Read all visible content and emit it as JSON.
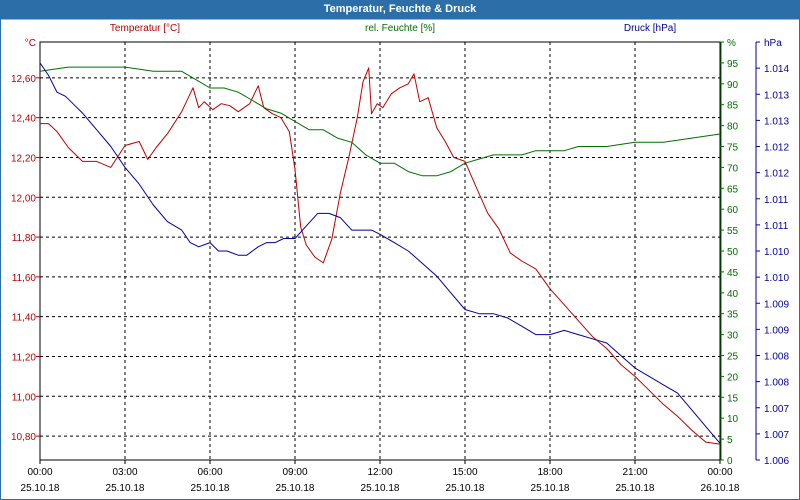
{
  "chart_data": {
    "type": "line",
    "title": "Temperatur, Feuchte & Druck",
    "x_tick_times": [
      "00:00",
      "03:00",
      "06:00",
      "09:00",
      "12:00",
      "15:00",
      "18:00",
      "21:00",
      "00:00"
    ],
    "x_tick_dates": [
      "25.10.18",
      "25.10.18",
      "25.10.18",
      "25.10.18",
      "25.10.18",
      "25.10.18",
      "25.10.18",
      "25.10.18",
      "26.10.18"
    ],
    "x_range_hours": [
      0,
      24
    ],
    "axes": {
      "left": {
        "unit": "°C",
        "range": [
          10.68,
          12.78
        ],
        "ticks": [
          "10,80",
          "11,00",
          "11,20",
          "11,40",
          "11,60",
          "11,80",
          "12,00",
          "12,20",
          "12,40",
          "12,60"
        ],
        "tick_values": [
          10.8,
          11.0,
          11.2,
          11.4,
          11.6,
          11.8,
          12.0,
          12.2,
          12.4,
          12.6
        ]
      },
      "mid": {
        "unit": "%",
        "range": [
          0,
          100
        ],
        "ticks": [
          "0",
          "5",
          "10",
          "15",
          "20",
          "25",
          "30",
          "35",
          "40",
          "45",
          "50",
          "55",
          "60",
          "65",
          "70",
          "75",
          "80",
          "85",
          "90",
          "95",
          "%"
        ],
        "tick_values": [
          0,
          5,
          10,
          15,
          20,
          25,
          30,
          35,
          40,
          45,
          50,
          55,
          60,
          65,
          70,
          75,
          80,
          85,
          90,
          95,
          100
        ]
      },
      "right": {
        "unit": "hPa",
        "range": [
          0,
          100
        ],
        "ticks": [
          "1.006",
          "1.007",
          "1.007",
          "1.008",
          "1.008",
          "1.009",
          "1.009",
          "1.010",
          "1.010",
          "1.011",
          "1.011",
          "1.012",
          "1.012",
          "1.013",
          "1.013",
          "1.014",
          "hPa"
        ],
        "tick_values": [
          0,
          6.25,
          12.5,
          18.75,
          25,
          31.25,
          37.5,
          43.75,
          50,
          56.25,
          62.5,
          68.75,
          75,
          81.25,
          87.5,
          93.75,
          100
        ]
      }
    },
    "series": [
      {
        "name": "Temperatur [°C]",
        "color": "#c00000",
        "axis": "left",
        "x": [
          0,
          0.3,
          0.6,
          1,
          1.5,
          2,
          2.5,
          3,
          3.5,
          3.8,
          4.1,
          4.5,
          5,
          5.4,
          5.6,
          5.8,
          6.1,
          6.4,
          6.7,
          7,
          7.4,
          7.7,
          7.9,
          8.2,
          8.5,
          8.8,
          9.0,
          9.2,
          9.4,
          9.7,
          10,
          10.3,
          10.6,
          10.9,
          11.2,
          11.4,
          11.6,
          11.7,
          11.9,
          12.1,
          12.4,
          12.7,
          13,
          13.2,
          13.4,
          13.7,
          14,
          14.3,
          14.6,
          15,
          15.4,
          15.8,
          16.2,
          16.6,
          17,
          17.5,
          18,
          18.5,
          19,
          19.5,
          20,
          20.5,
          21,
          21.5,
          22,
          22.5,
          23,
          23.5,
          24
        ],
        "values": [
          12.37,
          12.37,
          12.33,
          12.25,
          12.18,
          12.18,
          12.15,
          12.26,
          12.28,
          12.19,
          12.25,
          12.32,
          12.43,
          12.55,
          12.45,
          12.48,
          12.44,
          12.47,
          12.46,
          12.43,
          12.47,
          12.56,
          12.45,
          12.42,
          12.4,
          12.33,
          12.14,
          11.85,
          11.76,
          11.7,
          11.67,
          11.79,
          12.02,
          12.2,
          12.4,
          12.58,
          12.65,
          12.42,
          12.47,
          12.45,
          12.52,
          12.55,
          12.57,
          12.62,
          12.48,
          12.5,
          12.35,
          12.28,
          12.2,
          12.18,
          12.05,
          11.92,
          11.84,
          11.72,
          11.68,
          11.64,
          11.54,
          11.46,
          11.38,
          11.3,
          11.24,
          11.16,
          11.1,
          11.03,
          10.96,
          10.9,
          10.83,
          10.77,
          10.76
        ]
      },
      {
        "name": "rel. Feuchte [%]",
        "color": "#007000",
        "axis": "mid",
        "x": [
          0,
          1,
          2,
          3,
          4,
          5,
          5.5,
          6,
          6.5,
          7,
          7.5,
          8,
          8.5,
          9,
          9.5,
          10,
          10.5,
          11,
          11.5,
          12,
          12.5,
          13,
          13.5,
          14,
          14.5,
          15,
          15.5,
          16,
          16.5,
          17,
          17.5,
          18,
          18.5,
          19,
          20,
          21,
          22,
          23,
          24
        ],
        "values": [
          93,
          94,
          94,
          94,
          93,
          93,
          91,
          89,
          89,
          88,
          86,
          84,
          83,
          81,
          79,
          79,
          77,
          76,
          73,
          71,
          71,
          69,
          68,
          68,
          69,
          71,
          72,
          73,
          73,
          73,
          74,
          74,
          74,
          75,
          75,
          76,
          76,
          77,
          78
        ]
      },
      {
        "name": "Druck [hPa]",
        "color": "#0000a0",
        "axis": "right",
        "x": [
          0,
          0.3,
          0.6,
          0.9,
          1.2,
          1.5,
          2,
          2.5,
          3,
          3.5,
          4,
          4.5,
          5,
          5.3,
          5.6,
          6,
          6.3,
          6.6,
          7,
          7.3,
          7.7,
          8,
          8.3,
          8.6,
          9,
          9.4,
          9.8,
          10.2,
          10.6,
          11,
          11.4,
          11.7,
          12,
          12.5,
          13,
          13.5,
          14,
          14.5,
          15,
          15.5,
          16,
          16.5,
          17,
          17.5,
          18,
          18.5,
          19,
          19.5,
          20,
          20.5,
          21,
          21.5,
          22,
          22.5,
          23,
          23.5,
          24
        ],
        "values": [
          95,
          92,
          88,
          87,
          85,
          83,
          79,
          75,
          70,
          66,
          61,
          57,
          55,
          52,
          51,
          52,
          50,
          50,
          49,
          49,
          51,
          52,
          52,
          53,
          53,
          56,
          59,
          59,
          58,
          55,
          55,
          55,
          54,
          52,
          50,
          47,
          44,
          40,
          36,
          35,
          35,
          34,
          32,
          30,
          30,
          31,
          30,
          29,
          28,
          25,
          22,
          20,
          18,
          16,
          12,
          8,
          4
        ]
      }
    ]
  }
}
